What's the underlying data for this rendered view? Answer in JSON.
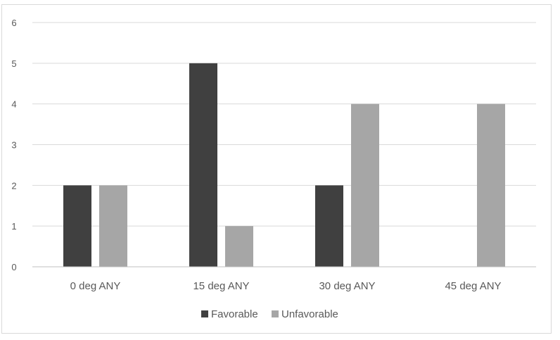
{
  "chart_data": {
    "type": "bar",
    "title": "",
    "xlabel": "",
    "ylabel": "",
    "categories": [
      "0 deg ANY",
      "15 deg ANY",
      "30 deg ANY",
      "45 deg ANY"
    ],
    "series": [
      {
        "name": "Favorable",
        "values": [
          2,
          5,
          2,
          0
        ],
        "color": "#404040"
      },
      {
        "name": "Unfavorable",
        "values": [
          2,
          1,
          4,
          4
        ],
        "color": "#a6a6a6"
      }
    ],
    "ylim": [
      0,
      6
    ],
    "yticks": [
      0,
      1,
      2,
      3,
      4,
      5,
      6
    ],
    "grid": true,
    "legend_position": "bottom"
  }
}
